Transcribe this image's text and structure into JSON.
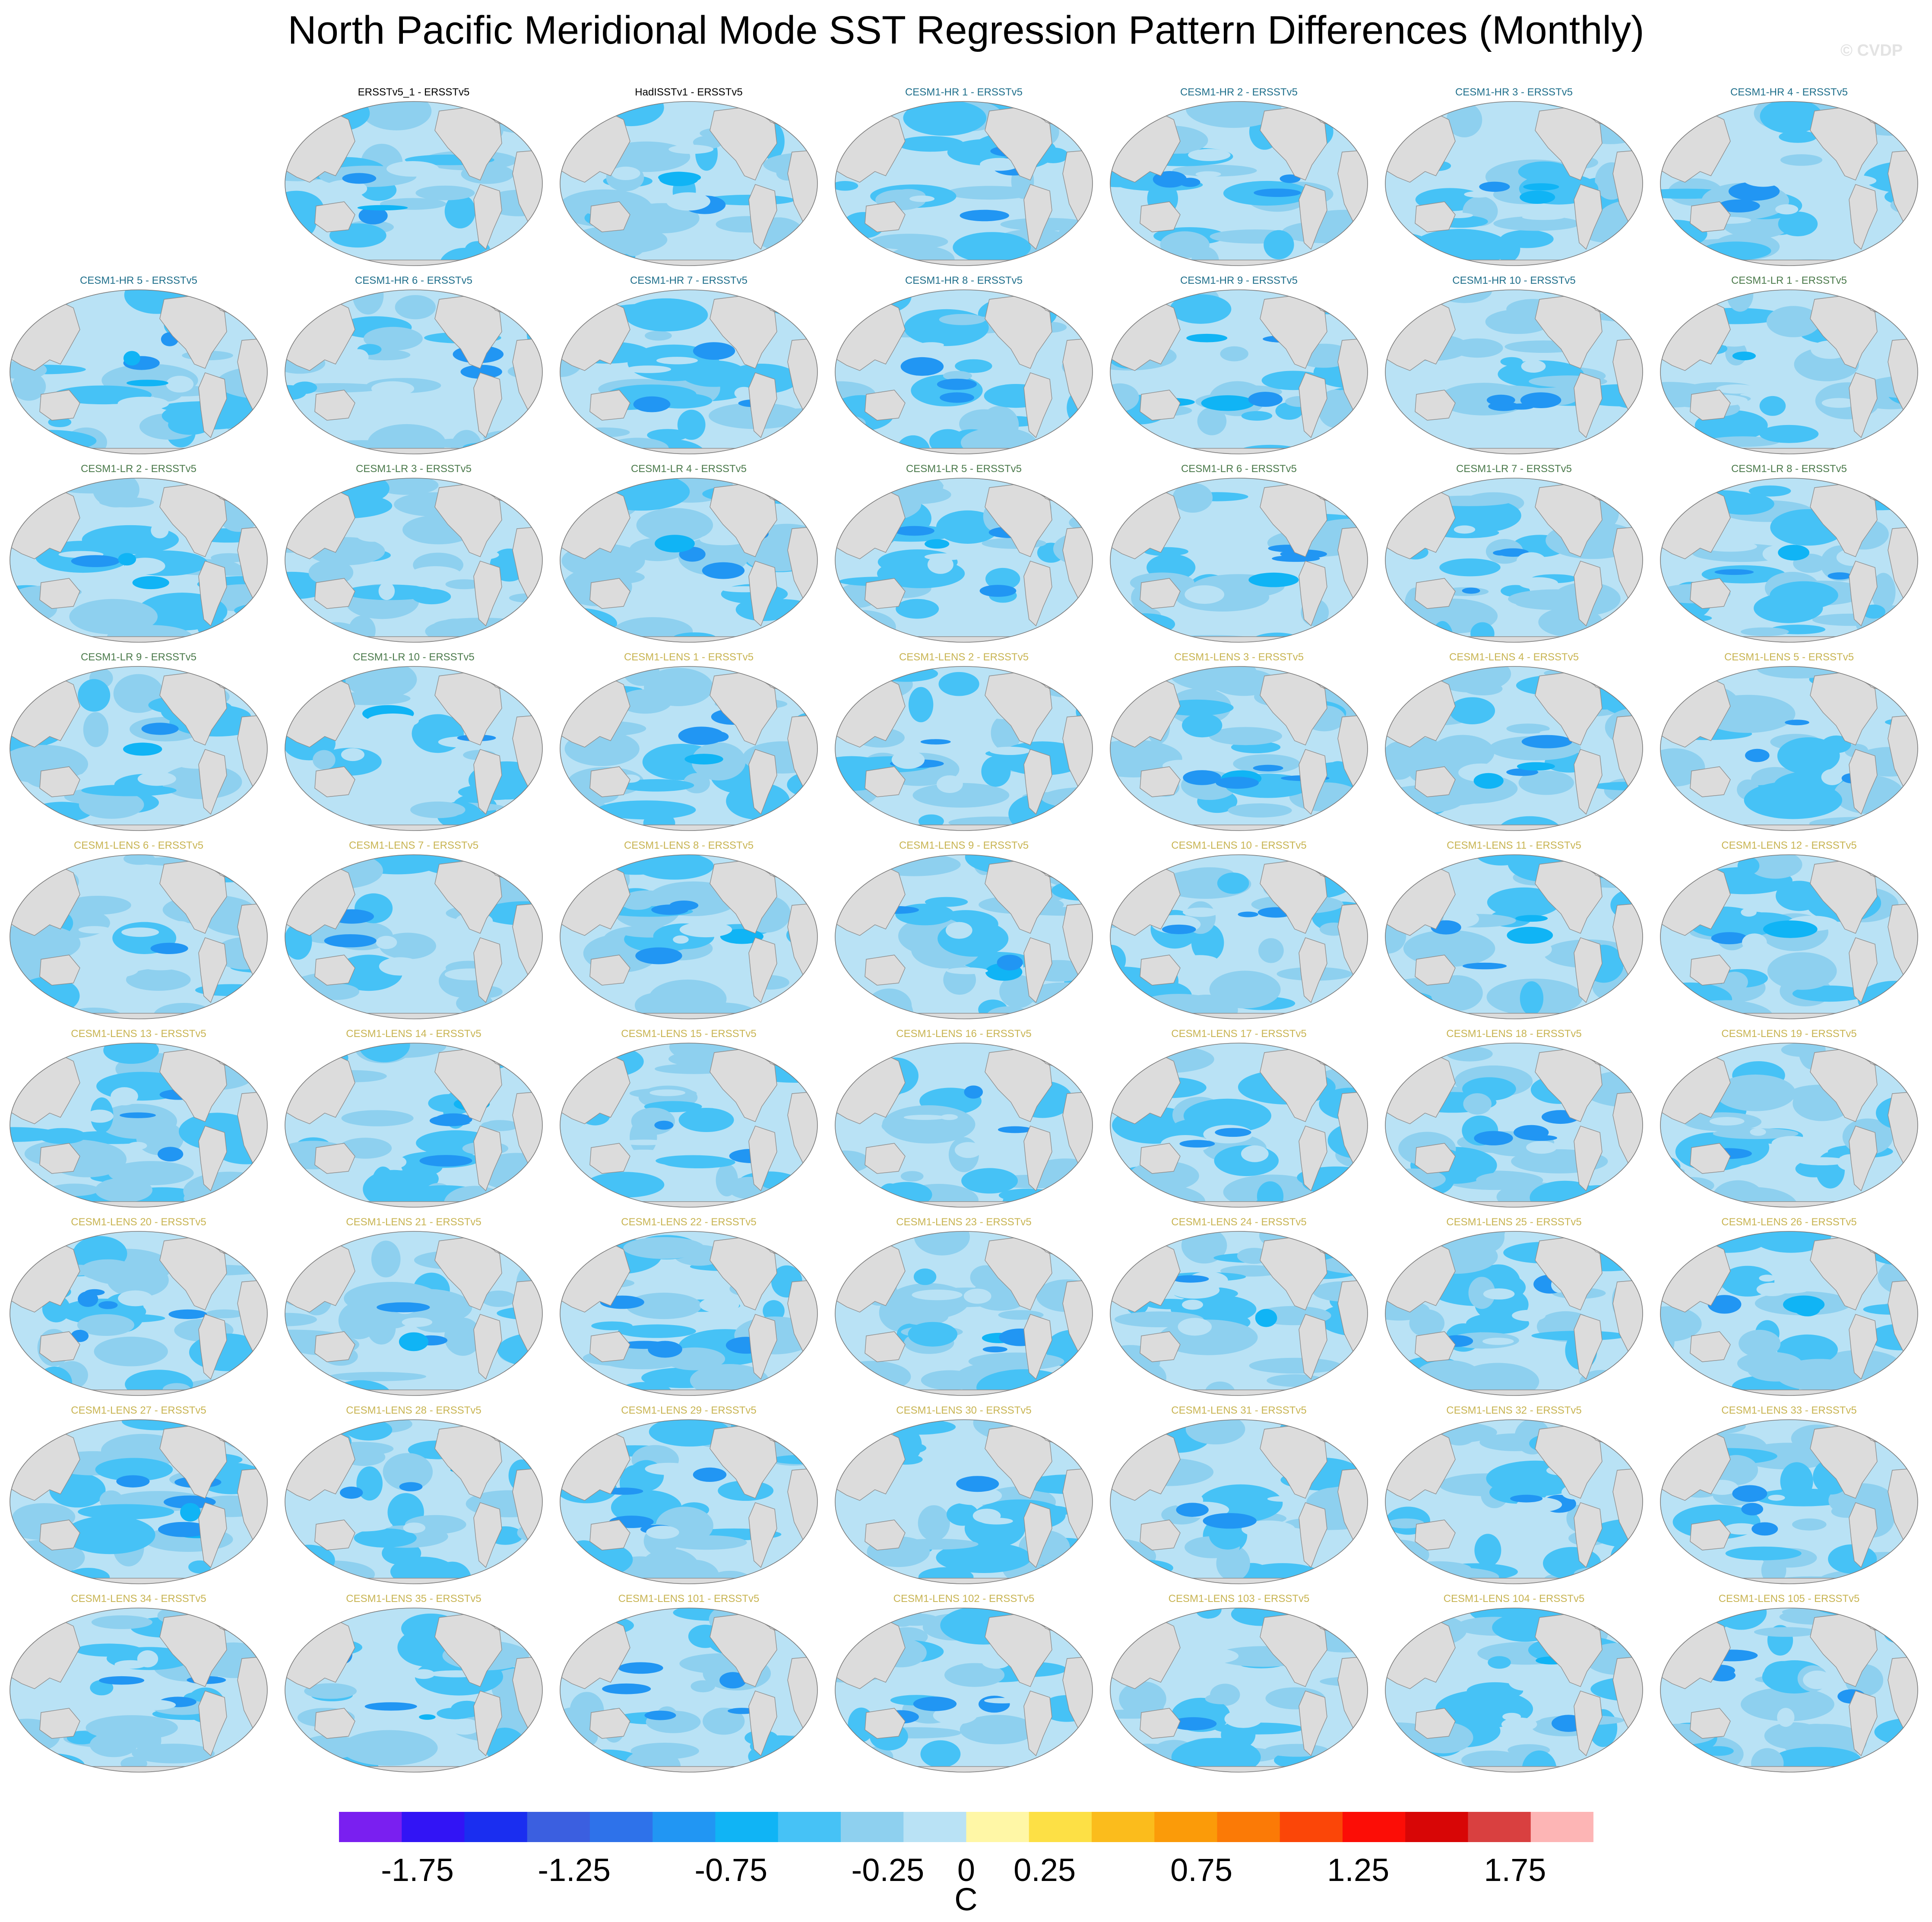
{
  "title": "North Pacific Meridional Mode SST Regression Pattern Differences (Monthly)",
  "watermark": "© CVDP",
  "colors": {
    "land": "#dcdcdc",
    "coast": "#8e8e8e",
    "title_obs": "#000000",
    "title_hr": "#1f6f8b",
    "title_lr": "#4b7a4b",
    "title_lens": "#c8b452"
  },
  "chart_data": {
    "type": "heatmap",
    "grid_columns": 7,
    "panels": [
      {
        "label": "ERSSTv5_1 - ERSSTv5",
        "group": "obs",
        "row": 0,
        "col": 1
      },
      {
        "label": "HadISSTv1 - ERSSTv5",
        "group": "obs",
        "row": 0,
        "col": 2
      },
      {
        "label": "CESM1-HR 1 - ERSSTv5",
        "group": "hr",
        "row": 0,
        "col": 3
      },
      {
        "label": "CESM1-HR 2 - ERSSTv5",
        "group": "hr",
        "row": 0,
        "col": 4
      },
      {
        "label": "CESM1-HR 3 - ERSSTv5",
        "group": "hr",
        "row": 0,
        "col": 5
      },
      {
        "label": "CESM1-HR 4 - ERSSTv5",
        "group": "hr",
        "row": 0,
        "col": 6
      },
      {
        "label": "CESM1-HR 5 - ERSSTv5",
        "group": "hr",
        "row": 1,
        "col": 0
      },
      {
        "label": "CESM1-HR 6 - ERSSTv5",
        "group": "hr",
        "row": 1,
        "col": 1
      },
      {
        "label": "CESM1-HR 7 - ERSSTv5",
        "group": "hr",
        "row": 1,
        "col": 2
      },
      {
        "label": "CESM1-HR 8 - ERSSTv5",
        "group": "hr",
        "row": 1,
        "col": 3
      },
      {
        "label": "CESM1-HR 9 - ERSSTv5",
        "group": "hr",
        "row": 1,
        "col": 4
      },
      {
        "label": "CESM1-HR 10 - ERSSTv5",
        "group": "hr",
        "row": 1,
        "col": 5
      },
      {
        "label": "CESM1-LR 1 - ERSSTv5",
        "group": "lr",
        "row": 1,
        "col": 6
      },
      {
        "label": "CESM1-LR 2 - ERSSTv5",
        "group": "lr",
        "row": 2,
        "col": 0
      },
      {
        "label": "CESM1-LR 3 - ERSSTv5",
        "group": "lr",
        "row": 2,
        "col": 1
      },
      {
        "label": "CESM1-LR 4 - ERSSTv5",
        "group": "lr",
        "row": 2,
        "col": 2
      },
      {
        "label": "CESM1-LR 5 - ERSSTv5",
        "group": "lr",
        "row": 2,
        "col": 3
      },
      {
        "label": "CESM1-LR 6 - ERSSTv5",
        "group": "lr",
        "row": 2,
        "col": 4
      },
      {
        "label": "CESM1-LR 7 - ERSSTv5",
        "group": "lr",
        "row": 2,
        "col": 5
      },
      {
        "label": "CESM1-LR 8 - ERSSTv5",
        "group": "lr",
        "row": 2,
        "col": 6
      },
      {
        "label": "CESM1-LR 9 - ERSSTv5",
        "group": "lr",
        "row": 3,
        "col": 0
      },
      {
        "label": "CESM1-LR 10 - ERSSTv5",
        "group": "lr",
        "row": 3,
        "col": 1
      },
      {
        "label": "CESM1-LENS 1 - ERSSTv5",
        "group": "lens",
        "row": 3,
        "col": 2
      },
      {
        "label": "CESM1-LENS 2 - ERSSTv5",
        "group": "lens",
        "row": 3,
        "col": 3
      },
      {
        "label": "CESM1-LENS 3 - ERSSTv5",
        "group": "lens",
        "row": 3,
        "col": 4
      },
      {
        "label": "CESM1-LENS 4 - ERSSTv5",
        "group": "lens",
        "row": 3,
        "col": 5
      },
      {
        "label": "CESM1-LENS 5 - ERSSTv5",
        "group": "lens",
        "row": 3,
        "col": 6
      },
      {
        "label": "CESM1-LENS 6 - ERSSTv5",
        "group": "lens",
        "row": 4,
        "col": 0
      },
      {
        "label": "CESM1-LENS 7 - ERSSTv5",
        "group": "lens",
        "row": 4,
        "col": 1
      },
      {
        "label": "CESM1-LENS 8 - ERSSTv5",
        "group": "lens",
        "row": 4,
        "col": 2
      },
      {
        "label": "CESM1-LENS 9 - ERSSTv5",
        "group": "lens",
        "row": 4,
        "col": 3
      },
      {
        "label": "CESM1-LENS 10 - ERSSTv5",
        "group": "lens",
        "row": 4,
        "col": 4
      },
      {
        "label": "CESM1-LENS 11 - ERSSTv5",
        "group": "lens",
        "row": 4,
        "col": 5
      },
      {
        "label": "CESM1-LENS 12 - ERSSTv5",
        "group": "lens",
        "row": 4,
        "col": 6
      },
      {
        "label": "CESM1-LENS 13 - ERSSTv5",
        "group": "lens",
        "row": 5,
        "col": 0
      },
      {
        "label": "CESM1-LENS 14 - ERSSTv5",
        "group": "lens",
        "row": 5,
        "col": 1
      },
      {
        "label": "CESM1-LENS 15 - ERSSTv5",
        "group": "lens",
        "row": 5,
        "col": 2
      },
      {
        "label": "CESM1-LENS 16 - ERSSTv5",
        "group": "lens",
        "row": 5,
        "col": 3
      },
      {
        "label": "CESM1-LENS 17 - ERSSTv5",
        "group": "lens",
        "row": 5,
        "col": 4
      },
      {
        "label": "CESM1-LENS 18 - ERSSTv5",
        "group": "lens",
        "row": 5,
        "col": 5
      },
      {
        "label": "CESM1-LENS 19 - ERSSTv5",
        "group": "lens",
        "row": 5,
        "col": 6
      },
      {
        "label": "CESM1-LENS 20 - ERSSTv5",
        "group": "lens",
        "row": 6,
        "col": 0
      },
      {
        "label": "CESM1-LENS 21 - ERSSTv5",
        "group": "lens",
        "row": 6,
        "col": 1
      },
      {
        "label": "CESM1-LENS 22 - ERSSTv5",
        "group": "lens",
        "row": 6,
        "col": 2
      },
      {
        "label": "CESM1-LENS 23 - ERSSTv5",
        "group": "lens",
        "row": 6,
        "col": 3
      },
      {
        "label": "CESM1-LENS 24 - ERSSTv5",
        "group": "lens",
        "row": 6,
        "col": 4
      },
      {
        "label": "CESM1-LENS 25 - ERSSTv5",
        "group": "lens",
        "row": 6,
        "col": 5
      },
      {
        "label": "CESM1-LENS 26 - ERSSTv5",
        "group": "lens",
        "row": 6,
        "col": 6
      },
      {
        "label": "CESM1-LENS 27 - ERSSTv5",
        "group": "lens",
        "row": 7,
        "col": 0
      },
      {
        "label": "CESM1-LENS 28 - ERSSTv5",
        "group": "lens",
        "row": 7,
        "col": 1
      },
      {
        "label": "CESM1-LENS 29 - ERSSTv5",
        "group": "lens",
        "row": 7,
        "col": 2
      },
      {
        "label": "CESM1-LENS 30 - ERSSTv5",
        "group": "lens",
        "row": 7,
        "col": 3
      },
      {
        "label": "CESM1-LENS 31 - ERSSTv5",
        "group": "lens",
        "row": 7,
        "col": 4
      },
      {
        "label": "CESM1-LENS 32 - ERSSTv5",
        "group": "lens",
        "row": 7,
        "col": 5
      },
      {
        "label": "CESM1-LENS 33 - ERSSTv5",
        "group": "lens",
        "row": 7,
        "col": 6
      },
      {
        "label": "CESM1-LENS 34 - ERSSTv5",
        "group": "lens",
        "row": 8,
        "col": 0
      },
      {
        "label": "CESM1-LENS 35 - ERSSTv5",
        "group": "lens",
        "row": 8,
        "col": 1
      },
      {
        "label": "CESM1-LENS 101 - ERSSTv5",
        "group": "lens",
        "row": 8,
        "col": 2
      },
      {
        "label": "CESM1-LENS 102 - ERSSTv5",
        "group": "lens",
        "row": 8,
        "col": 3
      },
      {
        "label": "CESM1-LENS 103 - ERSSTv5",
        "group": "lens",
        "row": 8,
        "col": 4
      },
      {
        "label": "CESM1-LENS 104 - ERSSTv5",
        "group": "lens",
        "row": 8,
        "col": 5
      },
      {
        "label": "CESM1-LENS 105 - ERSSTv5",
        "group": "lens",
        "row": 8,
        "col": 6
      }
    ],
    "colorbar": {
      "units": "C",
      "boundaries": [
        -2,
        -1.75,
        -1.5,
        -1.25,
        -1,
        -0.75,
        -0.5,
        -0.25,
        0,
        0.25,
        0.5,
        0.75,
        1,
        1.25,
        1.5,
        1.75,
        2
      ],
      "colors": [
        "#7a1ff0",
        "#3214f5",
        "#1a2ef0",
        "#3b5fe0",
        "#2e72ea",
        "#2196f3",
        "#10b4f5",
        "#46c2f6",
        "#8ed0ef",
        "#b9e2f5",
        "#fff7a6",
        "#fde045",
        "#fbbc1c",
        "#fb9b09",
        "#fb7a06",
        "#fb4608",
        "#fc0d06",
        "#d80606",
        "#d94040",
        "#fdb5b5"
      ],
      "tick_labels": [
        "-1.75",
        "-1.25",
        "-0.75",
        "-0.25",
        "0",
        "0.25",
        "0.75",
        "1.25",
        "1.75"
      ],
      "tick_values": [
        -1.75,
        -1.25,
        -0.75,
        -0.25,
        0,
        0.25,
        0.75,
        1.25,
        1.75
      ]
    }
  }
}
